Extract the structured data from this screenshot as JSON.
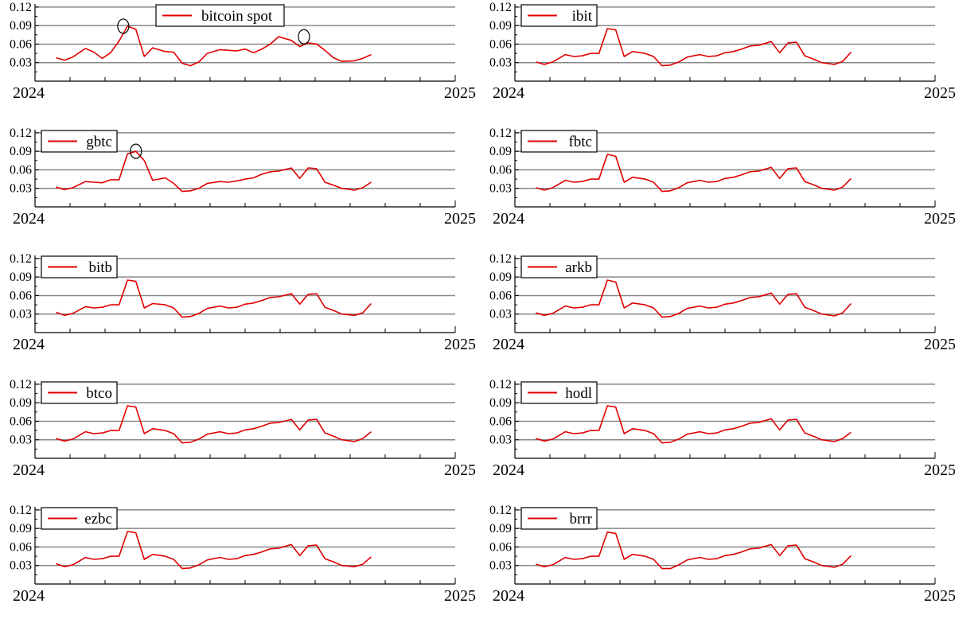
{
  "chart_data": [
    {
      "type": "line",
      "title": "",
      "xlabel": "",
      "ylabel": "",
      "x_ticks": [
        "2024",
        "2025"
      ],
      "y_ticks": [
        "0.12",
        "0.09",
        "0.06",
        "0.03"
      ],
      "ylim": [
        0.0,
        0.125
      ],
      "grid": "horizontal",
      "legend_position": "top-center",
      "series": [
        {
          "name": "bitcoin spot",
          "color": "#e00000",
          "x": [
            0.05,
            0.07,
            0.09,
            0.12,
            0.14,
            0.16,
            0.18,
            0.2,
            0.22,
            0.24,
            0.26,
            0.28,
            0.31,
            0.33,
            0.35,
            0.37,
            0.39,
            0.41,
            0.44,
            0.46,
            0.48,
            0.5,
            0.52,
            0.54,
            0.56,
            0.58,
            0.61,
            0.63,
            0.65,
            0.67,
            0.69,
            0.71,
            0.73,
            0.76,
            0.78,
            0.8
          ],
          "values": [
            0.038,
            0.034,
            0.039,
            0.053,
            0.047,
            0.037,
            0.046,
            0.065,
            0.089,
            0.084,
            0.04,
            0.054,
            0.048,
            0.047,
            0.029,
            0.025,
            0.031,
            0.045,
            0.051,
            0.05,
            0.049,
            0.052,
            0.046,
            0.052,
            0.06,
            0.072,
            0.066,
            0.056,
            0.062,
            0.06,
            0.05,
            0.038,
            0.032,
            0.033,
            0.037,
            0.043
          ]
        }
      ],
      "annotations": [
        {
          "type": "circle",
          "x": 0.21,
          "y": 0.089
        },
        {
          "type": "circle",
          "x": 0.64,
          "y": 0.072
        }
      ]
    },
    {
      "type": "line",
      "title": "",
      "xlabel": "",
      "ylabel": "",
      "x_ticks": [
        "2024",
        "2025"
      ],
      "y_ticks": [
        "0.12",
        "0.09",
        "0.06",
        "0.03"
      ],
      "ylim": [
        0.0,
        0.125
      ],
      "grid": "horizontal",
      "legend_position": "top-left",
      "series": [
        {
          "name": "ibit",
          "color": "#e00000",
          "x": [
            0.05,
            0.07,
            0.09,
            0.12,
            0.14,
            0.16,
            0.18,
            0.2,
            0.22,
            0.24,
            0.26,
            0.28,
            0.31,
            0.33,
            0.35,
            0.37,
            0.39,
            0.41,
            0.44,
            0.46,
            0.48,
            0.5,
            0.52,
            0.54,
            0.56,
            0.58,
            0.61,
            0.63,
            0.65,
            0.67,
            0.69,
            0.71,
            0.73,
            0.76,
            0.78,
            0.8
          ],
          "values": [
            0.031,
            0.027,
            0.031,
            0.043,
            0.04,
            0.041,
            0.045,
            0.045,
            0.085,
            0.083,
            0.04,
            0.048,
            0.045,
            0.04,
            0.025,
            0.026,
            0.031,
            0.039,
            0.043,
            0.04,
            0.041,
            0.046,
            0.048,
            0.052,
            0.057,
            0.058,
            0.064,
            0.046,
            0.062,
            0.063,
            0.041,
            0.036,
            0.03,
            0.027,
            0.032,
            0.047
          ]
        }
      ],
      "annotations": []
    },
    {
      "type": "line",
      "title": "",
      "xlabel": "",
      "ylabel": "",
      "x_ticks": [
        "2024",
        "2025"
      ],
      "y_ticks": [
        "0.12",
        "0.09",
        "0.06",
        "0.03"
      ],
      "ylim": [
        0.0,
        0.125
      ],
      "grid": "horizontal",
      "legend_position": "top-left",
      "series": [
        {
          "name": "gbtc",
          "color": "#e00000",
          "x": [
            0.05,
            0.07,
            0.09,
            0.12,
            0.14,
            0.16,
            0.18,
            0.2,
            0.22,
            0.24,
            0.26,
            0.28,
            0.31,
            0.33,
            0.35,
            0.37,
            0.39,
            0.41,
            0.44,
            0.46,
            0.48,
            0.5,
            0.52,
            0.54,
            0.56,
            0.58,
            0.61,
            0.63,
            0.65,
            0.67,
            0.69,
            0.71,
            0.73,
            0.76,
            0.78,
            0.8
          ],
          "values": [
            0.032,
            0.028,
            0.031,
            0.041,
            0.04,
            0.039,
            0.044,
            0.044,
            0.086,
            0.09,
            0.075,
            0.043,
            0.047,
            0.038,
            0.025,
            0.026,
            0.03,
            0.038,
            0.041,
            0.04,
            0.042,
            0.045,
            0.047,
            0.053,
            0.057,
            0.058,
            0.063,
            0.046,
            0.063,
            0.062,
            0.04,
            0.035,
            0.03,
            0.027,
            0.031,
            0.04
          ]
        }
      ],
      "annotations": [
        {
          "type": "circle",
          "x": 0.24,
          "y": 0.09
        }
      ]
    },
    {
      "type": "line",
      "title": "",
      "xlabel": "",
      "ylabel": "",
      "x_ticks": [
        "2024",
        "2025"
      ],
      "y_ticks": [
        "0.12",
        "0.09",
        "0.06",
        "0.03"
      ],
      "ylim": [
        0.0,
        0.125
      ],
      "grid": "horizontal",
      "legend_position": "top-left",
      "series": [
        {
          "name": "fbtc",
          "color": "#e00000",
          "x": [
            0.05,
            0.07,
            0.09,
            0.12,
            0.14,
            0.16,
            0.18,
            0.2,
            0.22,
            0.24,
            0.26,
            0.28,
            0.31,
            0.33,
            0.35,
            0.37,
            0.39,
            0.41,
            0.44,
            0.46,
            0.48,
            0.5,
            0.52,
            0.54,
            0.56,
            0.58,
            0.61,
            0.63,
            0.65,
            0.67,
            0.69,
            0.71,
            0.73,
            0.76,
            0.78,
            0.8
          ],
          "values": [
            0.031,
            0.027,
            0.031,
            0.043,
            0.04,
            0.041,
            0.045,
            0.045,
            0.085,
            0.082,
            0.04,
            0.048,
            0.045,
            0.04,
            0.025,
            0.026,
            0.031,
            0.039,
            0.043,
            0.04,
            0.041,
            0.046,
            0.048,
            0.052,
            0.057,
            0.058,
            0.064,
            0.046,
            0.062,
            0.063,
            0.041,
            0.036,
            0.03,
            0.027,
            0.032,
            0.046
          ]
        }
      ],
      "annotations": []
    },
    {
      "type": "line",
      "title": "",
      "xlabel": "",
      "ylabel": "",
      "x_ticks": [
        "2024",
        "2025"
      ],
      "y_ticks": [
        "0.12",
        "0.09",
        "0.06",
        "0.03"
      ],
      "ylim": [
        0.0,
        0.125
      ],
      "grid": "horizontal",
      "legend_position": "top-left",
      "series": [
        {
          "name": "bitb",
          "color": "#e00000",
          "x": [
            0.05,
            0.07,
            0.09,
            0.12,
            0.14,
            0.16,
            0.18,
            0.2,
            0.22,
            0.24,
            0.26,
            0.28,
            0.31,
            0.33,
            0.35,
            0.37,
            0.39,
            0.41,
            0.44,
            0.46,
            0.48,
            0.5,
            0.52,
            0.54,
            0.56,
            0.58,
            0.61,
            0.63,
            0.65,
            0.67,
            0.69,
            0.71,
            0.73,
            0.76,
            0.78,
            0.8
          ],
          "values": [
            0.033,
            0.028,
            0.031,
            0.042,
            0.04,
            0.041,
            0.045,
            0.045,
            0.085,
            0.083,
            0.04,
            0.047,
            0.045,
            0.04,
            0.025,
            0.026,
            0.031,
            0.039,
            0.043,
            0.04,
            0.041,
            0.046,
            0.048,
            0.052,
            0.057,
            0.058,
            0.063,
            0.046,
            0.062,
            0.063,
            0.041,
            0.036,
            0.03,
            0.028,
            0.032,
            0.047
          ]
        }
      ],
      "annotations": []
    },
    {
      "type": "line",
      "title": "",
      "xlabel": "",
      "ylabel": "",
      "x_ticks": [
        "2024",
        "2025"
      ],
      "y_ticks": [
        "0.12",
        "0.09",
        "0.06",
        "0.03"
      ],
      "ylim": [
        0.0,
        0.125
      ],
      "grid": "horizontal",
      "legend_position": "top-left",
      "series": [
        {
          "name": "arkb",
          "color": "#e00000",
          "x": [
            0.05,
            0.07,
            0.09,
            0.12,
            0.14,
            0.16,
            0.18,
            0.2,
            0.22,
            0.24,
            0.26,
            0.28,
            0.31,
            0.33,
            0.35,
            0.37,
            0.39,
            0.41,
            0.44,
            0.46,
            0.48,
            0.5,
            0.52,
            0.54,
            0.56,
            0.58,
            0.61,
            0.63,
            0.65,
            0.67,
            0.69,
            0.71,
            0.73,
            0.76,
            0.78,
            0.8
          ],
          "values": [
            0.032,
            0.028,
            0.031,
            0.043,
            0.04,
            0.041,
            0.045,
            0.045,
            0.085,
            0.082,
            0.04,
            0.048,
            0.045,
            0.04,
            0.025,
            0.026,
            0.031,
            0.039,
            0.043,
            0.04,
            0.041,
            0.046,
            0.048,
            0.052,
            0.057,
            0.058,
            0.064,
            0.046,
            0.062,
            0.063,
            0.041,
            0.036,
            0.03,
            0.027,
            0.032,
            0.047
          ]
        }
      ],
      "annotations": []
    },
    {
      "type": "line",
      "title": "",
      "xlabel": "",
      "ylabel": "",
      "x_ticks": [
        "2024",
        "2025"
      ],
      "y_ticks": [
        "0.12",
        "0.09",
        "0.06",
        "0.03"
      ],
      "ylim": [
        0.0,
        0.125
      ],
      "grid": "horizontal",
      "legend_position": "top-left",
      "series": [
        {
          "name": "btco",
          "color": "#e00000",
          "x": [
            0.05,
            0.07,
            0.09,
            0.12,
            0.14,
            0.16,
            0.18,
            0.2,
            0.22,
            0.24,
            0.26,
            0.28,
            0.31,
            0.33,
            0.35,
            0.37,
            0.39,
            0.41,
            0.44,
            0.46,
            0.48,
            0.5,
            0.52,
            0.54,
            0.56,
            0.58,
            0.61,
            0.63,
            0.65,
            0.67,
            0.69,
            0.71,
            0.73,
            0.76,
            0.78,
            0.8
          ],
          "values": [
            0.032,
            0.028,
            0.031,
            0.043,
            0.04,
            0.041,
            0.045,
            0.045,
            0.085,
            0.083,
            0.04,
            0.048,
            0.045,
            0.04,
            0.025,
            0.026,
            0.031,
            0.039,
            0.043,
            0.04,
            0.041,
            0.046,
            0.048,
            0.052,
            0.057,
            0.058,
            0.063,
            0.046,
            0.062,
            0.063,
            0.041,
            0.036,
            0.03,
            0.027,
            0.032,
            0.043
          ]
        }
      ],
      "annotations": []
    },
    {
      "type": "line",
      "title": "",
      "xlabel": "",
      "ylabel": "",
      "x_ticks": [
        "2024",
        "2025"
      ],
      "y_ticks": [
        "0.12",
        "0.09",
        "0.06",
        "0.03"
      ],
      "ylim": [
        0.0,
        0.125
      ],
      "grid": "horizontal",
      "legend_position": "top-left",
      "series": [
        {
          "name": "hodl",
          "color": "#e00000",
          "x": [
            0.05,
            0.07,
            0.09,
            0.12,
            0.14,
            0.16,
            0.18,
            0.2,
            0.22,
            0.24,
            0.26,
            0.28,
            0.31,
            0.33,
            0.35,
            0.37,
            0.39,
            0.41,
            0.44,
            0.46,
            0.48,
            0.5,
            0.52,
            0.54,
            0.56,
            0.58,
            0.61,
            0.63,
            0.65,
            0.67,
            0.69,
            0.71,
            0.73,
            0.76,
            0.78,
            0.8
          ],
          "values": [
            0.032,
            0.028,
            0.031,
            0.043,
            0.04,
            0.041,
            0.045,
            0.045,
            0.085,
            0.083,
            0.04,
            0.048,
            0.045,
            0.04,
            0.025,
            0.026,
            0.031,
            0.039,
            0.043,
            0.04,
            0.041,
            0.046,
            0.048,
            0.052,
            0.057,
            0.058,
            0.064,
            0.046,
            0.062,
            0.063,
            0.041,
            0.036,
            0.03,
            0.027,
            0.032,
            0.042
          ]
        }
      ],
      "annotations": []
    },
    {
      "type": "line",
      "title": "",
      "xlabel": "",
      "ylabel": "",
      "x_ticks": [
        "2024",
        "2025"
      ],
      "y_ticks": [
        "0.12",
        "0.09",
        "0.06",
        "0.03"
      ],
      "ylim": [
        0.0,
        0.125
      ],
      "grid": "horizontal",
      "legend_position": "top-left",
      "series": [
        {
          "name": "ezbc",
          "color": "#e00000",
          "x": [
            0.05,
            0.07,
            0.09,
            0.12,
            0.14,
            0.16,
            0.18,
            0.2,
            0.22,
            0.24,
            0.26,
            0.28,
            0.31,
            0.33,
            0.35,
            0.37,
            0.39,
            0.41,
            0.44,
            0.46,
            0.48,
            0.5,
            0.52,
            0.54,
            0.56,
            0.58,
            0.61,
            0.63,
            0.65,
            0.67,
            0.69,
            0.71,
            0.73,
            0.76,
            0.78,
            0.8
          ],
          "values": [
            0.033,
            0.028,
            0.031,
            0.043,
            0.04,
            0.041,
            0.045,
            0.045,
            0.085,
            0.083,
            0.04,
            0.048,
            0.045,
            0.04,
            0.025,
            0.026,
            0.031,
            0.039,
            0.043,
            0.04,
            0.041,
            0.046,
            0.048,
            0.052,
            0.057,
            0.058,
            0.064,
            0.046,
            0.062,
            0.063,
            0.041,
            0.036,
            0.03,
            0.028,
            0.032,
            0.044
          ]
        }
      ],
      "annotations": []
    },
    {
      "type": "line",
      "title": "",
      "xlabel": "",
      "ylabel": "",
      "x_ticks": [
        "2024",
        "2025"
      ],
      "y_ticks": [
        "0.12",
        "0.09",
        "0.06",
        "0.03"
      ],
      "ylim": [
        0.0,
        0.125
      ],
      "grid": "horizontal",
      "legend_position": "top-left",
      "series": [
        {
          "name": "brrr",
          "color": "#e00000",
          "x": [
            0.05,
            0.07,
            0.09,
            0.12,
            0.14,
            0.16,
            0.18,
            0.2,
            0.22,
            0.24,
            0.26,
            0.28,
            0.31,
            0.33,
            0.35,
            0.37,
            0.39,
            0.41,
            0.44,
            0.46,
            0.48,
            0.5,
            0.52,
            0.54,
            0.56,
            0.58,
            0.61,
            0.63,
            0.65,
            0.67,
            0.69,
            0.71,
            0.73,
            0.76,
            0.78,
            0.8
          ],
          "values": [
            0.032,
            0.028,
            0.031,
            0.043,
            0.04,
            0.041,
            0.045,
            0.045,
            0.084,
            0.082,
            0.04,
            0.048,
            0.045,
            0.04,
            0.025,
            0.025,
            0.031,
            0.039,
            0.043,
            0.04,
            0.041,
            0.046,
            0.048,
            0.052,
            0.057,
            0.058,
            0.064,
            0.046,
            0.062,
            0.063,
            0.041,
            0.036,
            0.03,
            0.027,
            0.032,
            0.046
          ]
        }
      ],
      "annotations": []
    }
  ]
}
